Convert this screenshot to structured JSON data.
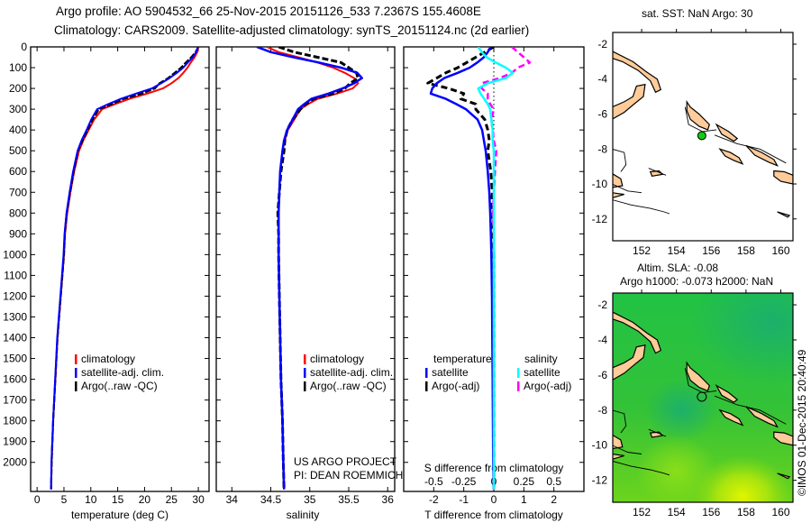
{
  "chart_data": {
    "type": "line",
    "title_lines": [
      "Argo profile: AO 5904532_66 25-Nov-2015 20151126_533 7.2367S 155.4608E",
      "Climatology: CARS2009. Satellite-adjusted climatology: synTS_20151124.nc (2d earlier)"
    ],
    "depth": [
      0,
      25,
      50,
      75,
      100,
      125,
      150,
      175,
      200,
      225,
      250,
      275,
      300,
      350,
      400,
      450,
      500,
      600,
      700,
      800,
      900,
      1000,
      1200,
      1400,
      1600,
      1800,
      2000,
      2130
    ],
    "ylim": [
      0,
      2140
    ],
    "yticks": [
      0,
      100,
      200,
      300,
      400,
      500,
      600,
      700,
      800,
      900,
      1000,
      1100,
      1200,
      1300,
      1400,
      1500,
      1600,
      1700,
      1800,
      1900,
      2000
    ],
    "temperature_climatology": [
      30,
      29.8,
      29.3,
      28.6,
      28,
      27.2,
      26.3,
      25,
      23.4,
      20.5,
      17.2,
      14.5,
      12.1,
      10.6,
      9.6,
      8.6,
      7.8,
      6.9,
      6.2,
      5.6,
      5.2,
      5.0,
      4.4,
      3.8,
      3.4,
      3.0,
      2.7,
      2.6
    ],
    "temperature_diff_satellite": [
      -0.1,
      -0.2,
      -0.33,
      -0.55,
      -0.8,
      -1.2,
      -1.65,
      -1.9,
      -2.05,
      -2.1,
      -1.6,
      -1.25,
      -0.93,
      -0.54,
      -0.39,
      -0.33,
      -0.27,
      -0.2,
      -0.15,
      -0.12,
      -0.1,
      -0.08,
      -0.06,
      -0.05,
      -0.04,
      -0.03,
      -0.02,
      0
    ],
    "temperature_diff_argo": [
      0,
      -0.3,
      -0.6,
      -0.9,
      -1.2,
      -1.6,
      -1.9,
      -2.2,
      -1.5,
      -1.0,
      -1.1,
      -0.6,
      -0.6,
      -0.3,
      -0.2,
      -0.15,
      -0.2,
      -0.1,
      -0.05,
      -0.1,
      -0.05,
      0,
      0,
      0,
      0,
      0,
      0,
      0
    ],
    "salinity_climatology": [
      34.45,
      34.6,
      34.85,
      35.1,
      35.3,
      35.45,
      35.57,
      35.62,
      35.55,
      35.35,
      35.1,
      34.98,
      34.88,
      34.8,
      34.72,
      34.68,
      34.65,
      34.62,
      34.61,
      34.6,
      34.6,
      34.6,
      34.61,
      34.62,
      34.63,
      34.65,
      34.66,
      34.67
    ],
    "salinity_diff_satellite": [
      -0.13,
      -0.1,
      -0.06,
      0.015,
      0.1,
      0.16,
      0.1,
      -0.05,
      -0.13,
      -0.11,
      -0.08,
      -0.05,
      -0.03,
      -0.02,
      -0.01,
      -0.01,
      0,
      0,
      0,
      0,
      0,
      0,
      0,
      0,
      0,
      0,
      0,
      0
    ],
    "salinity_diff_argo": [
      0.15,
      0.2,
      0.25,
      0.3,
      0.2,
      0.15,
      0.05,
      -0.1,
      -0.1,
      -0.05,
      -0.05,
      -0.03,
      0,
      -0.02,
      -0.01,
      0,
      0.02,
      0.01,
      0,
      -0.01,
      0,
      0,
      0,
      0,
      0,
      0,
      0,
      0
    ],
    "panels": {
      "temperature": {
        "xlabel": "temperature (deg C)",
        "xlim": [
          -1.2,
          32
        ],
        "xticks": [
          0,
          5,
          10,
          15,
          20,
          25,
          30
        ],
        "legend": [
          "climatology",
          "satellite-adj. clim.",
          "Argo(..raw -QC)"
        ]
      },
      "salinity": {
        "xlabel": "salinity",
        "xlim": [
          33.8,
          36.09
        ],
        "xticks": [
          34,
          34.5,
          35,
          35.5,
          36
        ],
        "legend": [
          "climatology",
          "satellite-adj. clim.",
          "Argo(..raw -QC)"
        ],
        "credit": [
          "US ARGO PROJECT",
          "PI: DEAN ROEMMICH"
        ]
      },
      "difference": {
        "xlabel": "T difference from climatology",
        "xlim": [
          -3,
          3
        ],
        "xticks": [
          -2,
          -1,
          0,
          1,
          2
        ],
        "s_label": "S difference from climatology",
        "s_xlim": [
          -0.75,
          0.75
        ],
        "s_xticks": [
          "-0.5",
          "-0.25",
          "0",
          "0.25",
          "0.5"
        ],
        "legend_t_title": "temperature",
        "legend_t": [
          "satellite",
          "Argo(-adj)"
        ],
        "legend_s_title": "salinity",
        "legend_s": [
          "satellite",
          "Argo(-adj)"
        ]
      }
    },
    "colors": {
      "climatology": "#ff0000",
      "satellite_t": "#0000ff",
      "argo_t": "#000000",
      "satellite_s": "#00ffff",
      "argo_s": "#ff00ff",
      "land": "#ffcc99"
    },
    "maps": {
      "lonlim": [
        150.34,
        160.7
      ],
      "latlim": [
        -13.25,
        -1.33
      ],
      "lon_ticks": [
        152,
        154,
        156,
        158,
        160
      ],
      "lat_ticks": [
        -2,
        -4,
        -6,
        -8,
        -10,
        -12
      ],
      "argo_position": {
        "lon": 155.4608,
        "lat": -7.2367
      },
      "sst": {
        "title": "sat. SST: NaN Argo: 30"
      },
      "sla": {
        "title_lines": [
          "Altim. SLA: -0.08",
          "Argo h1000: -0.073 h2000: NaN"
        ]
      },
      "land": [
        [
          [
            150.3,
            -2.4
          ],
          [
            151.5,
            -3.0
          ],
          [
            152.3,
            -3.6
          ],
          [
            152.9,
            -4.0
          ],
          [
            153.1,
            -4.6
          ],
          [
            152.8,
            -4.75
          ],
          [
            152.5,
            -4.1
          ],
          [
            151.8,
            -3.5
          ],
          [
            150.9,
            -3.0
          ],
          [
            150.3,
            -2.8
          ]
        ],
        [
          [
            150.3,
            -5.6
          ],
          [
            151.0,
            -5.3
          ],
          [
            151.5,
            -5.0
          ],
          [
            151.7,
            -4.4
          ],
          [
            152.2,
            -4.3
          ],
          [
            152.1,
            -5.0
          ],
          [
            151.6,
            -5.4
          ],
          [
            151.0,
            -5.9
          ],
          [
            150.3,
            -6.3
          ]
        ],
        [
          [
            154.6,
            -5.3
          ],
          [
            154.8,
            -5.6
          ],
          [
            155.3,
            -6.0
          ],
          [
            155.9,
            -6.6
          ],
          [
            155.8,
            -6.9
          ],
          [
            155.3,
            -6.7
          ],
          [
            154.8,
            -6.3
          ],
          [
            154.6,
            -5.8
          ]
        ],
        [
          [
            156.3,
            -6.6
          ],
          [
            157.0,
            -7.0
          ],
          [
            157.5,
            -7.4
          ],
          [
            157.3,
            -7.55
          ],
          [
            156.6,
            -7.15
          ]
        ],
        [
          [
            158.0,
            -7.8
          ],
          [
            158.9,
            -8.2
          ],
          [
            159.6,
            -8.6
          ],
          [
            159.8,
            -8.95
          ],
          [
            159.3,
            -8.75
          ],
          [
            158.5,
            -8.35
          ]
        ],
        [
          [
            159.6,
            -9.25
          ],
          [
            160.2,
            -9.3
          ],
          [
            160.7,
            -9.5
          ],
          [
            160.7,
            -10.0
          ],
          [
            160.0,
            -9.85
          ],
          [
            159.6,
            -9.55
          ]
        ],
        [
          [
            156.5,
            -8.0
          ],
          [
            157.1,
            -8.2
          ],
          [
            157.6,
            -8.5
          ],
          [
            157.8,
            -8.85
          ],
          [
            157.3,
            -8.65
          ],
          [
            156.8,
            -8.4
          ]
        ],
        [
          [
            150.3,
            -9.4
          ],
          [
            150.8,
            -9.7
          ],
          [
            150.9,
            -10.1
          ],
          [
            150.3,
            -10.2
          ]
        ],
        [
          [
            150.3,
            -10.5
          ],
          [
            151.0,
            -10.6
          ],
          [
            150.3,
            -10.8
          ]
        ],
        [
          [
            152.5,
            -9.3
          ],
          [
            153.0,
            -9.25
          ],
          [
            153.2,
            -9.45
          ],
          [
            152.6,
            -9.55
          ]
        ],
        [
          [
            159.8,
            -11.6
          ],
          [
            160.5,
            -11.8
          ],
          [
            160.4,
            -11.9
          ]
        ]
      ],
      "outlines": [
        [
          [
            154.5,
            -5.6
          ],
          [
            154.7,
            -6.6
          ],
          [
            155.5,
            -7.0
          ],
          [
            156.3,
            -6.9
          ]
        ],
        [
          [
            156.2,
            -7.2
          ],
          [
            157.5,
            -7.7
          ],
          [
            158.8,
            -8.0
          ],
          [
            160.3,
            -8.8
          ]
        ],
        [
          [
            150.3,
            -10.9
          ],
          [
            151.4,
            -11.2
          ],
          [
            152.5,
            -11.4
          ],
          [
            153.3,
            -11.6
          ],
          [
            153.6,
            -11.7
          ]
        ],
        [
          [
            150.3,
            -10.0
          ],
          [
            151.2,
            -10.4
          ],
          [
            152.0,
            -10.5
          ]
        ],
        [
          [
            150.3,
            -8.0
          ],
          [
            151.0,
            -8.2
          ],
          [
            151.1,
            -8.9
          ],
          [
            150.8,
            -9.3
          ]
        ],
        [
          [
            152.4,
            -9.1
          ],
          [
            153.4,
            -9.5
          ]
        ]
      ],
      "watermark": "©IMOS 01-Dec-2015 20:40:49"
    }
  }
}
